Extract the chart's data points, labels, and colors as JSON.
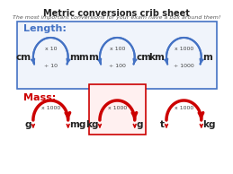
{
  "title": "Metric conversions crib sheet",
  "subtitle": "The most important conversions for your exam have a box around them!",
  "bg_color": "#ffffff",
  "length_box_color": "#4472c4",
  "mass_box_color": "#cc0000",
  "length_label": "Length:",
  "mass_label": "Mass:",
  "length_units": [
    {
      "left": "cm",
      "right": "mm",
      "up": "x 10",
      "down": "÷ 10"
    },
    {
      "left": "m",
      "right": "cm",
      "up": "x 100",
      "down": "÷ 100"
    },
    {
      "left": "km",
      "right": "m",
      "up": "x 1000",
      "down": "÷ 1000"
    }
  ],
  "mass_units": [
    {
      "left": "g",
      "right": "mg",
      "up": "x 1000",
      "box": false
    },
    {
      "left": "kg",
      "right": "g",
      "up": "x 1000",
      "box": true
    },
    {
      "left": "t",
      "right": "kg",
      "up": "x 1000",
      "box": false
    }
  ],
  "arrow_color_length": "#4472c4",
  "arrow_color_mass": "#cc0000",
  "unit_font_color": "#333333",
  "label_font_color": "#4472c4",
  "mass_label_font_color": "#cc0000"
}
